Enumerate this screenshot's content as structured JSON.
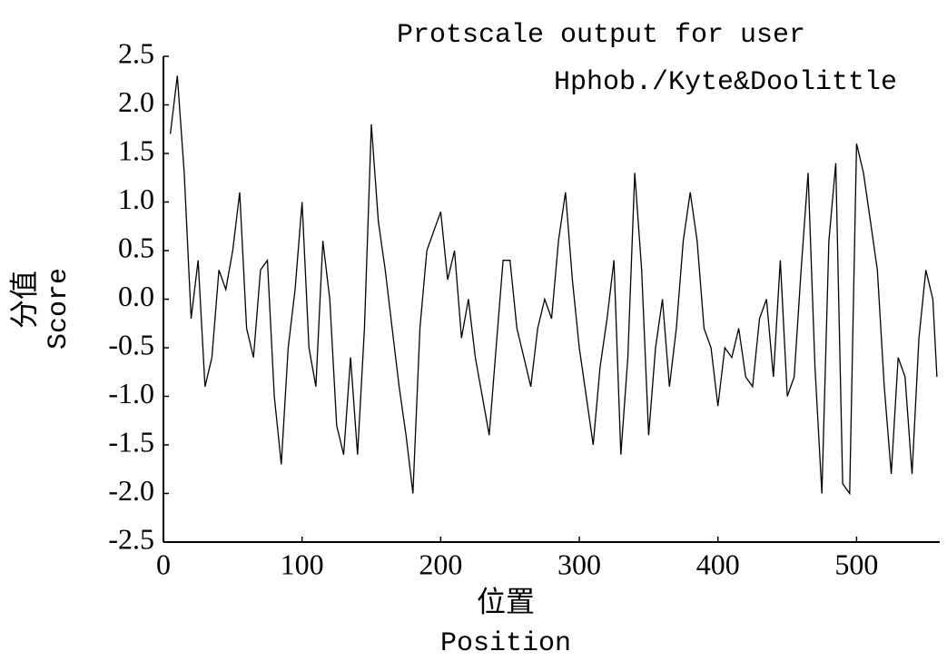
{
  "chart_data": {
    "type": "line",
    "title": "Protscale output for user",
    "subtitle": "Hphob./Kyte&Doolittle",
    "ylabel": [
      "分值",
      "Score"
    ],
    "xlabel": [
      "位置",
      "Position"
    ],
    "x": [
      5,
      10,
      15,
      20,
      25,
      30,
      35,
      40,
      45,
      50,
      55,
      60,
      65,
      70,
      75,
      80,
      85,
      90,
      95,
      100,
      105,
      110,
      115,
      120,
      125,
      130,
      135,
      140,
      145,
      150,
      155,
      160,
      165,
      170,
      175,
      180,
      185,
      190,
      195,
      200,
      205,
      210,
      215,
      220,
      225,
      230,
      235,
      240,
      245,
      250,
      255,
      260,
      265,
      270,
      275,
      280,
      285,
      290,
      295,
      300,
      305,
      310,
      315,
      320,
      325,
      330,
      335,
      340,
      345,
      350,
      355,
      360,
      365,
      370,
      375,
      380,
      385,
      390,
      395,
      400,
      405,
      410,
      415,
      420,
      425,
      430,
      435,
      440,
      445,
      450,
      455,
      460,
      465,
      470,
      475,
      480,
      485,
      490,
      495,
      500,
      505,
      510,
      515,
      520,
      525,
      530,
      535,
      540,
      545,
      550,
      555,
      558
    ],
    "series": [
      {
        "name": "Score",
        "color": "#000000",
        "values": [
          1.7,
          2.3,
          1.3,
          -0.2,
          0.4,
          -0.9,
          -0.6,
          0.3,
          0.1,
          0.5,
          1.1,
          -0.3,
          -0.6,
          0.3,
          0.4,
          -1.0,
          -1.7,
          -0.5,
          0.1,
          1.0,
          -0.5,
          -0.9,
          0.6,
          0.0,
          -1.3,
          -1.6,
          -0.6,
          -1.6,
          -0.3,
          1.8,
          0.8,
          0.3,
          -0.3,
          -0.9,
          -1.4,
          -2.0,
          -0.3,
          0.5,
          0.7,
          0.9,
          0.2,
          0.5,
          -0.4,
          0.0,
          -0.6,
          -1.0,
          -1.4,
          -0.5,
          0.4,
          0.4,
          -0.3,
          -0.6,
          -0.9,
          -0.3,
          0.0,
          -0.2,
          0.6,
          1.1,
          0.2,
          -0.5,
          -1.0,
          -1.5,
          -0.7,
          -0.2,
          0.4,
          -1.6,
          -0.6,
          1.3,
          0.3,
          -1.4,
          -0.5,
          0.0,
          -0.9,
          -0.3,
          0.6,
          1.1,
          0.6,
          -0.3,
          -0.5,
          -1.1,
          -0.5,
          -0.6,
          -0.3,
          -0.8,
          -0.9,
          -0.2,
          0.0,
          -0.8,
          0.4,
          -1.0,
          -0.8,
          0.3,
          1.3,
          -0.7,
          -2.0,
          0.6,
          1.4,
          -1.9,
          -2.0,
          1.6,
          1.3,
          0.8,
          0.3,
          -0.9,
          -1.8,
          -0.6,
          -0.8,
          -1.8,
          -0.4,
          0.3,
          0.0,
          -0.8
        ]
      }
    ],
    "xlim": [
      0,
      560
    ],
    "xticks": [
      0,
      100,
      200,
      300,
      400,
      500
    ],
    "ylim": [
      -2.5,
      2.5
    ],
    "yticks": [
      -2.5,
      {
        "value": -2,
        "label": "-2.0"
      },
      -1.5,
      {
        "value": -1,
        "label": "-1.0"
      },
      -0.5,
      {
        "value": 0,
        "label": "0.0"
      },
      0.5,
      {
        "value": 1,
        "label": "1.0"
      },
      1.5,
      {
        "value": 2,
        "label": "2.0"
      },
      2.5
    ],
    "grid": false
  }
}
